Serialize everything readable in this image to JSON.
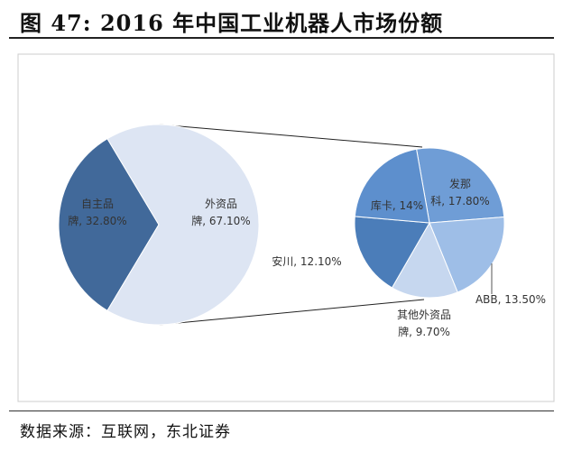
{
  "title": "图 47: 2016 年中国工业机器人市场份额",
  "source": "数据来源：互联网，东北证券",
  "chart_data": {
    "type": "pie",
    "subtype": "pie-of-pie",
    "main": {
      "slices": [
        {
          "name": "自主品牌",
          "value": 32.8,
          "label": [
            "自主品",
            "牌, 32.80%"
          ],
          "color": "#41699a"
        },
        {
          "name": "外资品牌",
          "value": 67.1,
          "label": [
            "外资品",
            "牌, 67.10%"
          ],
          "color": "#dde5f3"
        }
      ]
    },
    "secondary": {
      "slices": [
        {
          "name": "发那科",
          "value": 17.8,
          "label": [
            "发那",
            "科, 17.80%"
          ],
          "color": "#6f9dd6"
        },
        {
          "name": "ABB",
          "value": 13.5,
          "label": [
            "ABB, 13.50%"
          ],
          "color": "#9ebee7"
        },
        {
          "name": "其他外资品牌",
          "value": 9.7,
          "label": [
            "其他外资品",
            "牌, 9.70%"
          ],
          "color": "#c6d7ef"
        },
        {
          "name": "安川",
          "value": 12.1,
          "label": [
            "安川, 12.10%"
          ],
          "color": "#4b7db9"
        },
        {
          "name": "库卡",
          "value": 14,
          "label": [
            "库卡, 14%"
          ],
          "color": "#5d8fcd"
        }
      ]
    }
  }
}
